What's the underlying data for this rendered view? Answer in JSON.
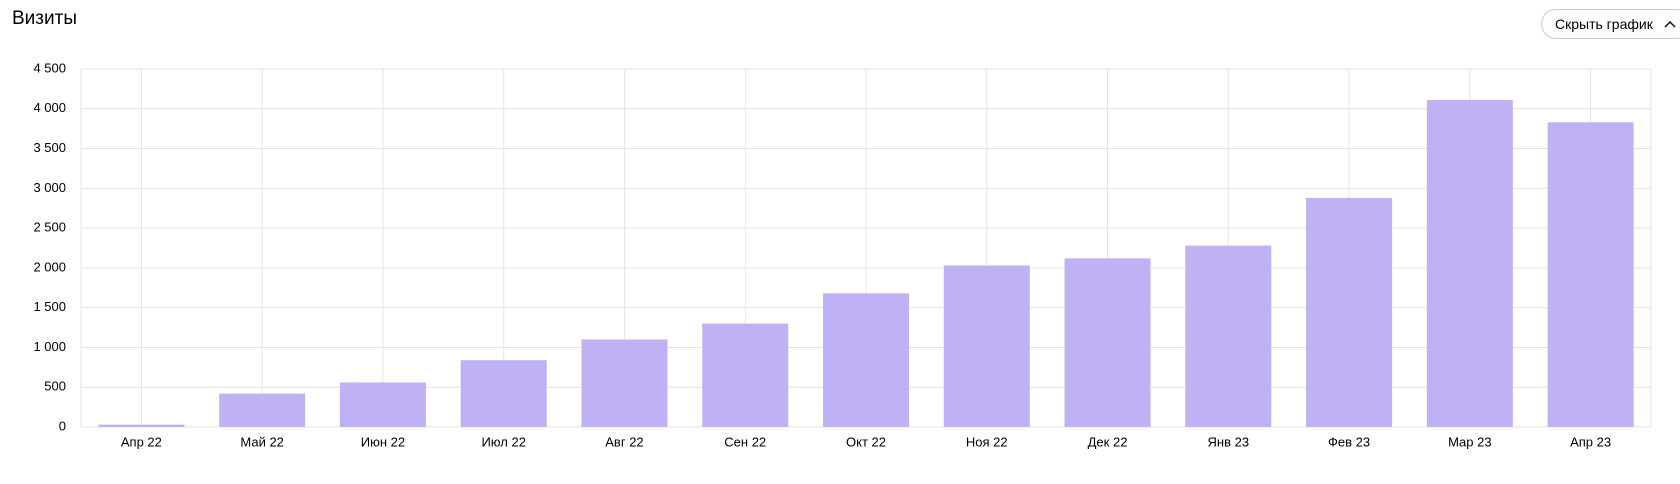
{
  "header": {
    "title": "Визиты",
    "button": "Скрыть график"
  },
  "chart_data": {
    "type": "bar",
    "categories": [
      "Апр 22",
      "Май 22",
      "Июн 22",
      "Июл 22",
      "Авг 22",
      "Сен 22",
      "Окт 22",
      "Ноя 22",
      "Дек 22",
      "Янв 23",
      "Фев 23",
      "Мар 23",
      "Апр 23"
    ],
    "values": [
      30,
      420,
      560,
      840,
      1100,
      1300,
      1680,
      2030,
      2120,
      2280,
      2880,
      4110,
      3830
    ],
    "color": "#bfb1f4",
    "ylim": [
      0,
      4500
    ],
    "yticks": [
      0,
      500,
      {
        "value": 1000,
        "label": "1 000"
      },
      {
        "value": 1500,
        "label": "1 500"
      },
      {
        "value": 2000,
        "label": "2 000"
      },
      {
        "value": 2500,
        "label": "2 500"
      },
      {
        "value": 3000,
        "label": "3 000"
      },
      {
        "value": 3500,
        "label": "3 500"
      },
      {
        "value": 4000,
        "label": "4 000"
      },
      {
        "value": 4500,
        "label": "4 500"
      }
    ],
    "grid": true
  }
}
